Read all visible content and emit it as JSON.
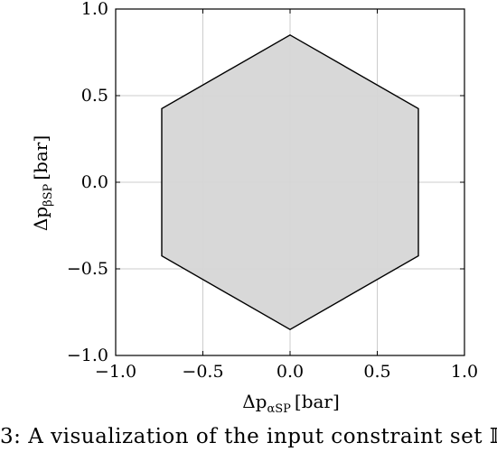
{
  "chart_data": {
    "type": "area",
    "title": "",
    "xlabel": {
      "main": "Δp",
      "sub": "αSP",
      "unit": "[bar]"
    },
    "ylabel": {
      "main": "Δp",
      "sub": "βSP",
      "unit": "[bar]"
    },
    "xlim": [
      -1.0,
      1.0
    ],
    "ylim": [
      -1.0,
      1.0
    ],
    "xticks": [
      -1.0,
      -0.5,
      0.0,
      0.5,
      1.0
    ],
    "yticks": [
      -1.0,
      -0.5,
      0.0,
      0.5,
      1.0
    ],
    "xtick_labels": [
      "−1.0",
      "−0.5",
      "0.0",
      "0.5",
      "1.0"
    ],
    "ytick_labels": [
      "−1.0",
      "−0.5",
      "0.0",
      "0.5",
      "1.0"
    ],
    "grid": true,
    "series": [
      {
        "shape": "polygon",
        "vertices": [
          [
            0.0,
            0.85
          ],
          [
            0.736,
            0.425
          ],
          [
            0.736,
            -0.425
          ],
          [
            0.0,
            -0.85
          ],
          [
            -0.736,
            -0.425
          ],
          [
            -0.736,
            0.425
          ]
        ],
        "fill": "#d6d6d6",
        "edge": "#000000"
      }
    ]
  },
  "caption": "3: A visualization of the input constraint set 𝕀"
}
